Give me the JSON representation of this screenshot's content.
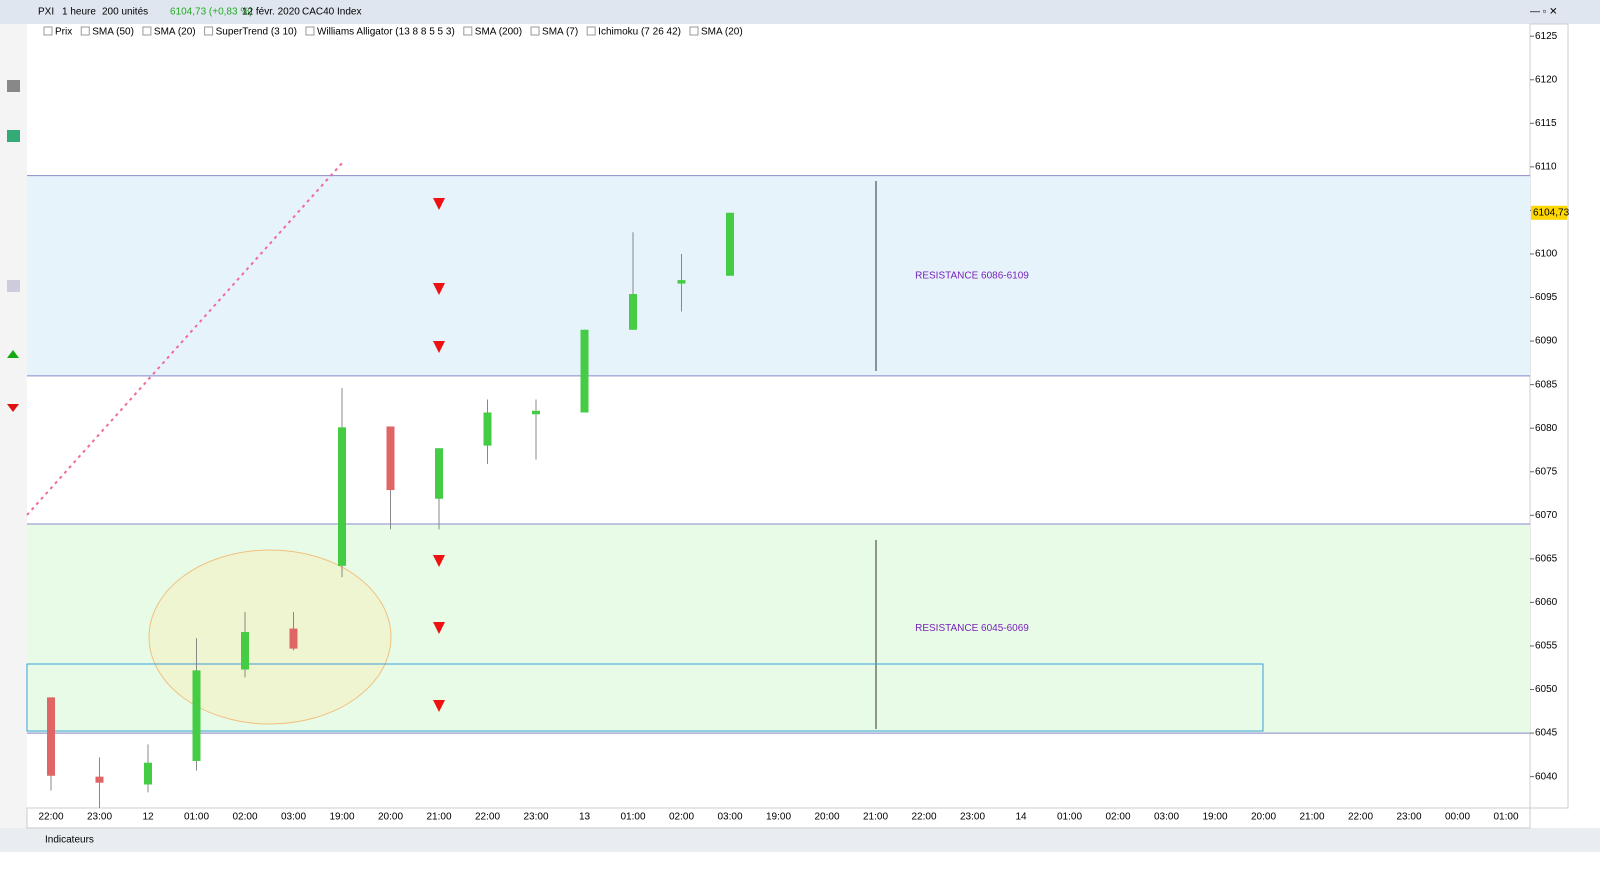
{
  "toolbar": {
    "symbol": "PXI",
    "period": "1 heure",
    "units": "200 unités",
    "quote": "6104,73 (+0,83 %)",
    "date": "12 févr. 2020",
    "instrument": "CAC40 Index"
  },
  "legend": [
    "Prix",
    "SMA (50)",
    "SMA (20)",
    "SuperTrend (3 10)",
    "Williams Alligator (13 8 8 5 5 3)",
    "SMA (200)",
    "SMA (7)",
    "Ichimoku (7 26 42)",
    "SMA (20)"
  ],
  "bottom": {
    "indicators": "Indicateurs"
  },
  "chart_data": {
    "type": "candlestick",
    "categories": [
      "22:00",
      "23:00",
      "12",
      "01:00",
      "02:00",
      "03:00",
      "19:00",
      "20:00",
      "21:00",
      "22:00",
      "23:00",
      "13",
      "01:00",
      "02:00",
      "03:00",
      "19:00",
      "20:00",
      "21:00",
      "22:00",
      "23:00",
      "14",
      "01:00",
      "02:00",
      "03:00",
      "19:00",
      "20:00",
      "21:00",
      "22:00",
      "23:00",
      "00:00",
      "01:00"
    ],
    "open": [
      6049.1,
      6040.0,
      6039.1,
      6041.8,
      6052.3,
      6057.0,
      6064.2,
      6080.2,
      6071.9,
      6078.0,
      6081.6,
      6081.8,
      6091.3,
      6096.6,
      6097.5,
      null,
      null,
      null,
      null,
      null,
      null,
      null,
      null,
      null,
      null,
      null,
      null,
      null,
      null,
      null,
      null
    ],
    "high": [
      6049.1,
      6042.2,
      6043.7,
      6055.9,
      6058.9,
      6058.9,
      6084.6,
      6080.2,
      6077.7,
      6083.3,
      6083.3,
      6091.3,
      6102.5,
      6100.0,
      6104.73,
      null,
      null,
      null,
      null,
      null,
      null,
      null,
      null,
      null,
      null,
      null,
      null,
      null,
      null,
      null,
      null
    ],
    "low": [
      6038.4,
      6036.4,
      6038.2,
      6040.7,
      6051.4,
      6054.5,
      6062.9,
      6068.4,
      6068.4,
      6075.9,
      6076.4,
      6081.8,
      6091.3,
      6093.4,
      6097.5,
      null,
      null,
      null,
      null,
      null,
      null,
      null,
      null,
      null,
      null,
      null,
      null,
      null,
      null,
      null,
      null
    ],
    "close": [
      6040.1,
      6039.3,
      6041.6,
      6052.2,
      6056.6,
      6054.7,
      6080.1,
      6072.9,
      6077.7,
      6081.8,
      6082.0,
      6091.3,
      6095.4,
      6097.0,
      6104.73,
      null,
      null,
      null,
      null,
      null,
      null,
      null,
      null,
      null,
      null,
      null,
      null,
      null,
      null,
      null,
      null
    ],
    "up_color": "#44cc44",
    "down_color": "#e06666",
    "ylim": [
      6036.4,
      6126.4
    ],
    "yticks": [
      6040,
      6045,
      6050,
      6055,
      6060,
      6065,
      6070,
      6075,
      6080,
      6085,
      6090,
      6095,
      6100,
      6105,
      6110,
      6115,
      6120,
      6125
    ],
    "last_price": {
      "value": 6104.73,
      "label": "6104,73"
    },
    "zones": [
      {
        "from": 6086,
        "to": 6109,
        "color": "#e6f3fb",
        "label": "RESISTANCE 6086-6109"
      },
      {
        "from": 6045,
        "to": 6069,
        "color": "#e8fbe6",
        "label": "RESISTANCE 6045-6069"
      }
    ]
  }
}
